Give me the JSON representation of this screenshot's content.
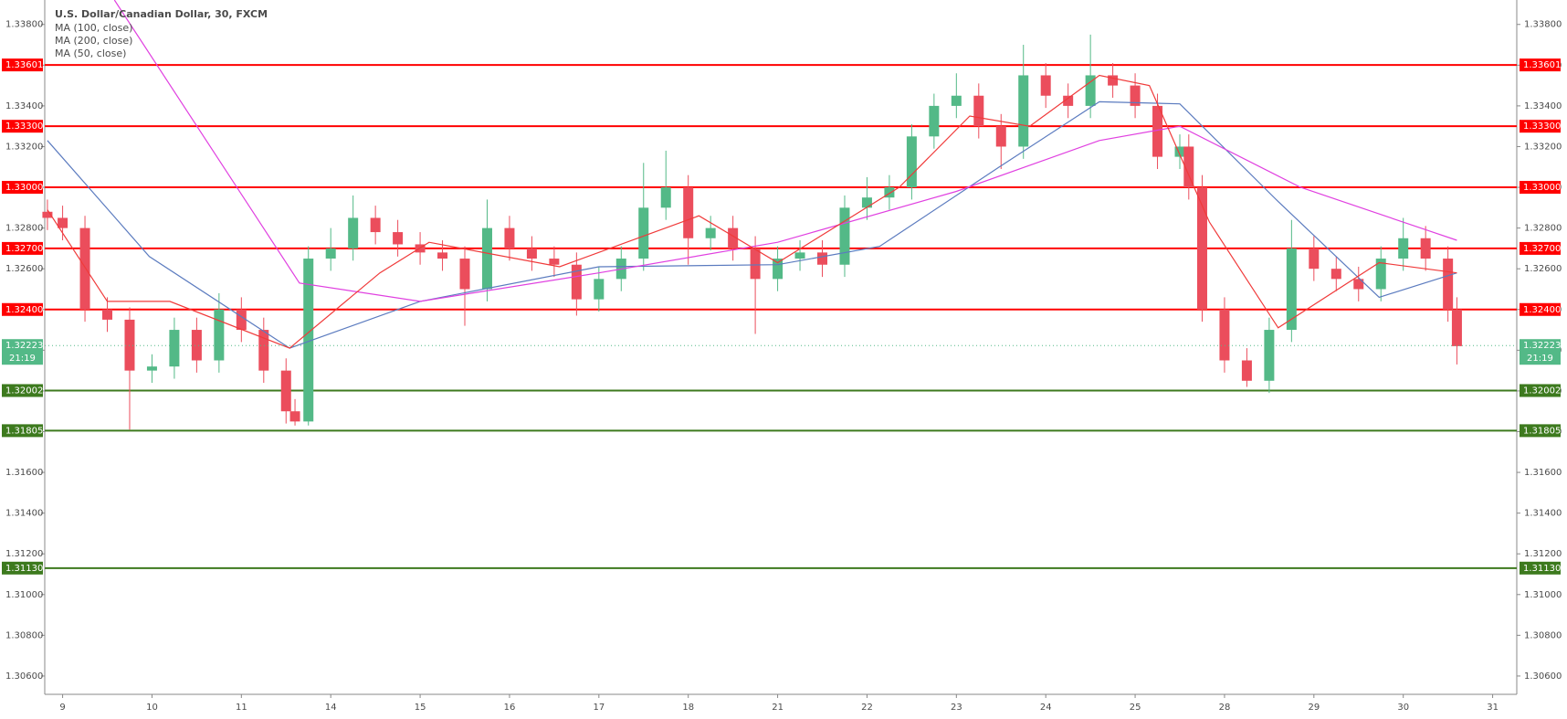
{
  "chart_data": {
    "type": "candlestick",
    "title": "U.S. Dollar/Canadian Dollar, 30, FXCM",
    "xlim": [
      -0.2,
      16.27
    ],
    "xticks": [
      {
        "value": 0,
        "label": "9"
      },
      {
        "value": 1,
        "label": "10"
      },
      {
        "value": 2,
        "label": "11"
      },
      {
        "value": 3,
        "label": "14"
      },
      {
        "value": 4,
        "label": "15"
      },
      {
        "value": 5,
        "label": "16"
      },
      {
        "value": 6,
        "label": "17"
      },
      {
        "value": 7,
        "label": "18"
      },
      {
        "value": 8,
        "label": "21"
      },
      {
        "value": 9,
        "label": "22"
      },
      {
        "value": 10,
        "label": "23"
      },
      {
        "value": 11,
        "label": "24"
      },
      {
        "value": 12,
        "label": "25"
      },
      {
        "value": 13,
        "label": "28"
      },
      {
        "value": 14,
        "label": "29"
      },
      {
        "value": 15,
        "label": "30"
      },
      {
        "value": 16,
        "label": "31"
      }
    ],
    "ylim": [
      1.3051,
      1.3392
    ],
    "yticks": [
      {
        "value": 1.306,
        "label": "1.30600"
      },
      {
        "value": 1.308,
        "label": "1.30800"
      },
      {
        "value": 1.31,
        "label": "1.31000"
      },
      {
        "value": 1.312,
        "label": "1.31200"
      },
      {
        "value": 1.314,
        "label": "1.31400"
      },
      {
        "value": 1.316,
        "label": "1.31600"
      },
      {
        "value": 1.318,
        "label": "1.31800"
      },
      {
        "value": 1.32,
        "label": "1.32000"
      },
      {
        "value": 1.322,
        "label": "1.32200"
      },
      {
        "value": 1.324,
        "label": "1.32400"
      },
      {
        "value": 1.326,
        "label": "1.32600"
      },
      {
        "value": 1.328,
        "label": "1.32800"
      },
      {
        "value": 1.33,
        "label": "1.33000"
      },
      {
        "value": 1.332,
        "label": "1.33200"
      },
      {
        "value": 1.334,
        "label": "1.33400"
      },
      {
        "value": 1.336,
        "label": "1.33600"
      },
      {
        "value": 1.338,
        "label": "1.33800"
      }
    ],
    "up_color": "#53b987",
    "down_color": "#eb4d5c",
    "candles": {
      "x": [
        -0.17,
        0,
        0.25,
        0.5,
        0.75,
        1,
        1.25,
        1.5,
        1.75,
        2,
        2.25,
        2.5,
        2.6,
        2.75,
        3,
        3.25,
        3.5,
        3.75,
        4,
        4.25,
        4.5,
        4.75,
        5,
        5.25,
        5.5,
        5.75,
        6,
        6.25,
        6.5,
        6.75,
        7,
        7.25,
        7.5,
        7.75,
        8,
        8.25,
        8.5,
        8.75,
        9,
        9.25,
        9.5,
        9.75,
        10,
        10.25,
        10.5,
        10.75,
        11,
        11.25,
        11.5,
        11.75,
        12,
        12.25,
        12.5,
        12.6,
        12.75,
        13,
        13.25,
        13.5,
        13.75,
        14,
        14.25,
        14.5,
        14.75,
        15,
        15.25,
        15.5,
        15.6
      ],
      "open": [
        1.3288,
        1.3285,
        1.328,
        1.324,
        1.3235,
        1.321,
        1.3212,
        1.323,
        1.3215,
        1.324,
        1.323,
        1.321,
        1.319,
        1.3185,
        1.3265,
        1.327,
        1.3285,
        1.3278,
        1.3272,
        1.3268,
        1.3265,
        1.325,
        1.328,
        1.327,
        1.3265,
        1.3262,
        1.3245,
        1.3255,
        1.3265,
        1.329,
        1.33,
        1.3275,
        1.328,
        1.327,
        1.3255,
        1.3265,
        1.3268,
        1.3262,
        1.329,
        1.3295,
        1.33,
        1.3325,
        1.334,
        1.3345,
        1.333,
        1.332,
        1.3355,
        1.3345,
        1.334,
        1.3355,
        1.335,
        1.334,
        1.3315,
        1.332,
        1.33,
        1.324,
        1.3215,
        1.3205,
        1.323,
        1.327,
        1.326,
        1.3255,
        1.325,
        1.3265,
        1.3275,
        1.3265,
        1.324
      ],
      "high": [
        1.3294,
        1.3291,
        1.3286,
        1.3246,
        1.3241,
        1.3218,
        1.3236,
        1.3236,
        1.3248,
        1.3246,
        1.3236,
        1.3216,
        1.3196,
        1.3271,
        1.328,
        1.3296,
        1.3291,
        1.3284,
        1.3278,
        1.3274,
        1.3271,
        1.3294,
        1.3286,
        1.3276,
        1.3271,
        1.3268,
        1.3261,
        1.3271,
        1.3312,
        1.3318,
        1.3306,
        1.3286,
        1.3286,
        1.3276,
        1.3271,
        1.3274,
        1.3274,
        1.3296,
        1.3305,
        1.3306,
        1.3331,
        1.3346,
        1.3356,
        1.3351,
        1.3336,
        1.337,
        1.3361,
        1.3351,
        1.3375,
        1.3361,
        1.3356,
        1.3346,
        1.3326,
        1.3326,
        1.3306,
        1.3246,
        1.3221,
        1.3236,
        1.3284,
        1.3276,
        1.3266,
        1.3261,
        1.3271,
        1.3285,
        1.3281,
        1.3271,
        1.3246
      ],
      "low": [
        1.3279,
        1.3274,
        1.3234,
        1.3229,
        1.3181,
        1.3204,
        1.3206,
        1.3209,
        1.3209,
        1.3224,
        1.3204,
        1.3184,
        1.3183,
        1.3183,
        1.3259,
        1.3264,
        1.3272,
        1.3266,
        1.3262,
        1.3259,
        1.3232,
        1.3244,
        1.3264,
        1.3259,
        1.3256,
        1.3237,
        1.3239,
        1.3249,
        1.3259,
        1.3284,
        1.3262,
        1.3269,
        1.3264,
        1.3228,
        1.3249,
        1.3259,
        1.3256,
        1.3256,
        1.3284,
        1.3289,
        1.3294,
        1.3319,
        1.3334,
        1.3324,
        1.3309,
        1.3314,
        1.3339,
        1.3334,
        1.3334,
        1.3344,
        1.3334,
        1.3309,
        1.3309,
        1.3294,
        1.3234,
        1.3209,
        1.3202,
        1.3199,
        1.3224,
        1.3254,
        1.3249,
        1.3244,
        1.3244,
        1.3259,
        1.3259,
        1.3234,
        1.3213
      ],
      "close": [
        1.3285,
        1.328,
        1.324,
        1.3235,
        1.321,
        1.3212,
        1.323,
        1.3215,
        1.324,
        1.323,
        1.321,
        1.319,
        1.3185,
        1.3265,
        1.327,
        1.3285,
        1.3278,
        1.3272,
        1.3268,
        1.3265,
        1.325,
        1.328,
        1.327,
        1.3265,
        1.3262,
        1.3245,
        1.3255,
        1.3265,
        1.329,
        1.33,
        1.3275,
        1.328,
        1.327,
        1.3255,
        1.3265,
        1.3268,
        1.3262,
        1.329,
        1.3295,
        1.33,
        1.3325,
        1.334,
        1.3345,
        1.333,
        1.332,
        1.3355,
        1.3345,
        1.334,
        1.3355,
        1.335,
        1.334,
        1.3315,
        1.332,
        1.33,
        1.324,
        1.3215,
        1.3205,
        1.323,
        1.327,
        1.326,
        1.3255,
        1.325,
        1.3265,
        1.3275,
        1.3265,
        1.324,
        1.3222
      ]
    },
    "series": [
      {
        "name": "MA (100, close)",
        "color": "#5b7bbf",
        "x": [
          -0.17,
          0.97,
          2.54,
          4.0,
          6.0,
          8.0,
          9.14,
          10.48,
          11.6,
          12.5,
          13.6,
          14.73,
          15.6
        ],
        "values": [
          1.3323,
          1.3266,
          1.3221,
          1.3244,
          1.3261,
          1.3262,
          1.3271,
          1.331,
          1.3342,
          1.3341,
          1.3293,
          1.3246,
          1.3258
        ]
      },
      {
        "name": "MA (200, close)",
        "color": "#e040e0",
        "x": [
          0.58,
          2.65,
          4.0,
          6.0,
          8.0,
          10.0,
          11.6,
          12.5,
          13.85,
          15.6
        ],
        "values": [
          1.3392,
          1.3253,
          1.3244,
          1.3258,
          1.3273,
          1.3298,
          1.3323,
          1.333,
          1.33,
          1.3274
        ]
      },
      {
        "name": "MA (50, close)",
        "color": "#f03a3a",
        "x": [
          -0.17,
          0.5,
          1.2,
          2.54,
          3.55,
          4.1,
          5.56,
          7.12,
          8.0,
          9.36,
          10.15,
          10.82,
          11.6,
          12.16,
          12.83,
          13.6,
          14.73,
          15.6
        ],
        "values": [
          1.3289,
          1.3244,
          1.3244,
          1.3221,
          1.3258,
          1.3273,
          1.3261,
          1.3286,
          1.3263,
          1.33,
          1.3335,
          1.333,
          1.3355,
          1.335,
          1.3283,
          1.3231,
          1.3263,
          1.3258
        ]
      }
    ],
    "levels": [
      {
        "value": 1.33601,
        "label": "1.33601",
        "color": "#ff0000"
      },
      {
        "value": 1.333,
        "label": "1.33300",
        "color": "#ff0000"
      },
      {
        "value": 1.33,
        "label": "1.33000",
        "color": "#ff0000"
      },
      {
        "value": 1.327,
        "label": "1.32700",
        "color": "#ff0000"
      },
      {
        "value": 1.324,
        "label": "1.32400",
        "color": "#ff0000"
      },
      {
        "value": 1.32002,
        "label": "1.32002",
        "color": "#3d7a1e"
      },
      {
        "value": 1.31805,
        "label": "1.31805",
        "color": "#3d7a1e"
      },
      {
        "value": 1.3113,
        "label": "1.31130",
        "color": "#3d7a1e"
      }
    ],
    "last_price": {
      "value": 1.32223,
      "label": "1.32223",
      "countdown": "21:19",
      "color": "#53b987"
    }
  }
}
